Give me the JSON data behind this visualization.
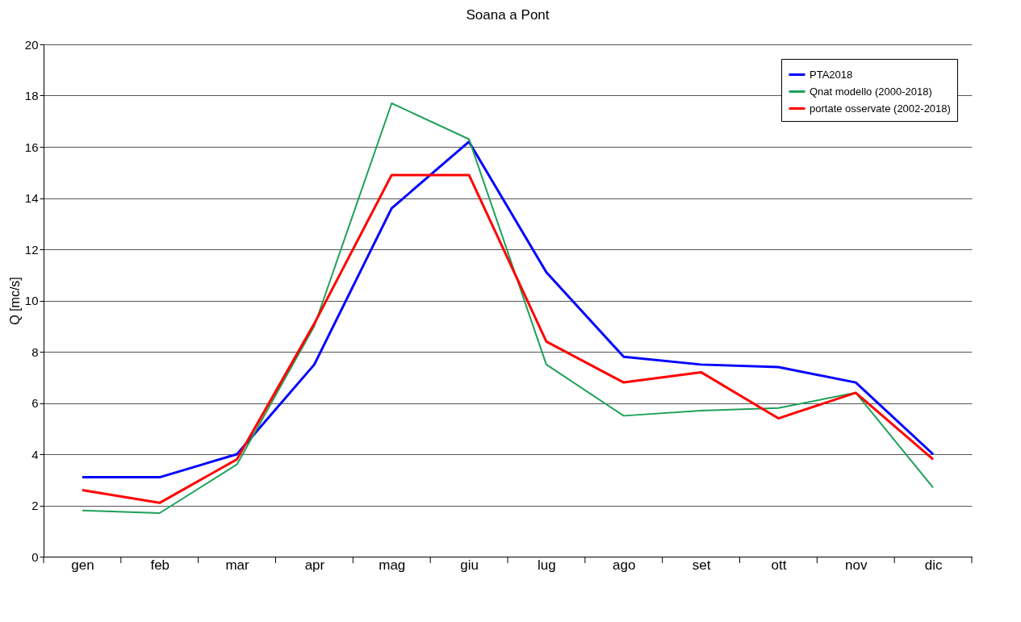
{
  "chart_data": {
    "type": "line",
    "title": "Soana a Pont",
    "ylabel": "Q [mc/s]",
    "categories": [
      "gen",
      "feb",
      "mar",
      "apr",
      "mag",
      "giu",
      "lug",
      "ago",
      "set",
      "ott",
      "nov",
      "dic"
    ],
    "series": [
      {
        "name": "PTA2018",
        "color": "#0000ff",
        "values": [
          3.1,
          3.1,
          4.0,
          7.5,
          13.6,
          16.2,
          11.1,
          7.8,
          7.5,
          7.4,
          6.8,
          4.0
        ]
      },
      {
        "name": "Qnat modello (2000-2018)",
        "color": "#1ea05a",
        "values": [
          1.8,
          1.7,
          3.6,
          9.0,
          17.7,
          16.3,
          7.5,
          5.5,
          5.7,
          5.8,
          6.4,
          2.7
        ]
      },
      {
        "name": "portate osservate (2002-2018)",
        "color": "#ff0000",
        "values": [
          2.6,
          2.1,
          3.8,
          9.1,
          14.9,
          14.9,
          8.4,
          6.8,
          7.2,
          5.4,
          6.4,
          3.8
        ]
      }
    ],
    "ylim": [
      0,
      20
    ],
    "yticks": [
      0,
      2,
      4,
      6,
      8,
      10,
      12,
      14,
      16,
      18,
      20
    ],
    "grid": "y",
    "legend": "top right",
    "marker": "none",
    "line_style": "solid"
  }
}
